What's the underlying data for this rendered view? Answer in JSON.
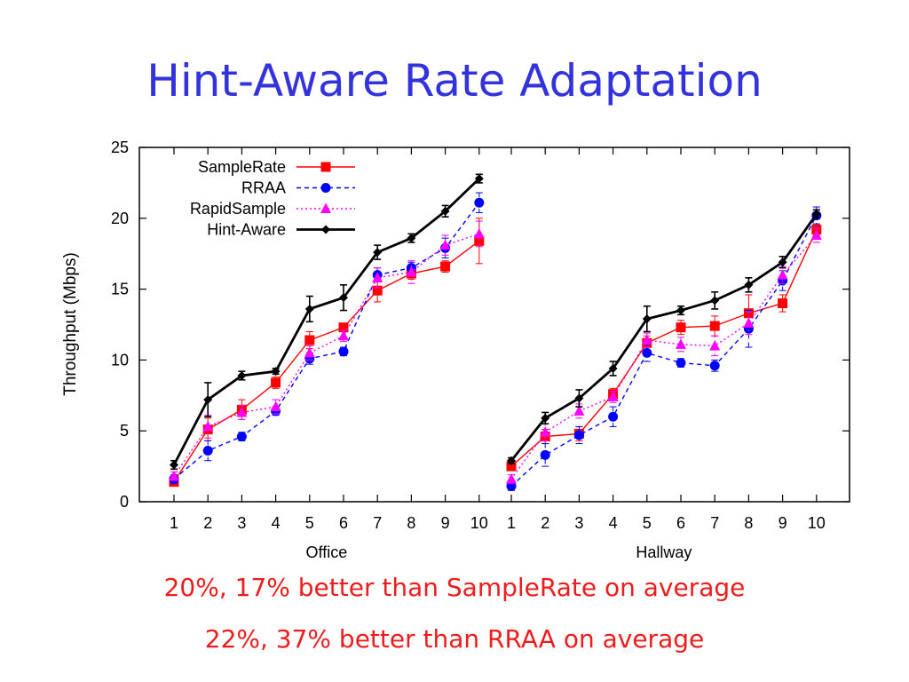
{
  "slide": {
    "title": "Hint-Aware Rate Adaptation",
    "captions": [
      "20%, 17% better than SampleRate on average",
      "22%, 37% better than RRAA on average"
    ]
  },
  "chart_data": {
    "type": "line",
    "title": "",
    "xlabel": "",
    "ylabel": "Throughput (Mbps)",
    "ylim": [
      0,
      25
    ],
    "yticks": [
      0,
      5,
      10,
      15,
      20,
      25
    ],
    "legend_position": "top-left",
    "grid": false,
    "groups": [
      {
        "name": "Office",
        "categories": [
          "1",
          "2",
          "3",
          "4",
          "5",
          "6",
          "7",
          "8",
          "9",
          "10"
        ]
      },
      {
        "name": "Hallway",
        "categories": [
          "1",
          "2",
          "3",
          "4",
          "5",
          "6",
          "7",
          "8",
          "9",
          "10"
        ]
      }
    ],
    "series": [
      {
        "name": "SampleRate",
        "color": "#ff0000",
        "marker": "square",
        "dash": "solid",
        "office": [
          1.4,
          5.1,
          6.5,
          8.4,
          11.4,
          12.3,
          14.9,
          16.1,
          16.6,
          18.4
        ],
        "office_err": [
          0.3,
          0.8,
          0.7,
          0.4,
          0.6,
          0.3,
          0.8,
          0.4,
          0.4,
          1.6
        ],
        "hallway": [
          2.5,
          4.6,
          4.8,
          7.6,
          11.2,
          12.3,
          12.4,
          13.3,
          14.0,
          19.2
        ],
        "hallway_err": [
          0.3,
          0.5,
          0.5,
          0.4,
          0.5,
          0.5,
          0.7,
          1.3,
          0.6,
          0.4
        ]
      },
      {
        "name": "RRAA",
        "color": "#0000ff",
        "marker": "circle",
        "dash": "dashed",
        "office": [
          1.6,
          3.6,
          4.6,
          6.4,
          10.1,
          10.6,
          16.0,
          16.5,
          17.9,
          21.1
        ],
        "office_err": [
          0.3,
          0.7,
          0.3,
          0.3,
          0.4,
          0.3,
          0.5,
          0.4,
          0.7,
          0.7
        ],
        "hallway": [
          1.1,
          3.3,
          4.7,
          6.0,
          10.5,
          9.8,
          9.6,
          12.2,
          15.6,
          20.2
        ],
        "hallway_err": [
          0.3,
          0.8,
          0.6,
          0.7,
          0.6,
          0.3,
          0.4,
          1.3,
          0.7,
          0.6
        ]
      },
      {
        "name": "RapidSample",
        "color": "#ff00ff",
        "marker": "triangle",
        "dash": "dotted",
        "office": [
          1.8,
          5.3,
          6.3,
          6.7,
          10.5,
          11.7,
          15.8,
          16.2,
          18.1,
          18.9
        ],
        "office_err": [
          0.3,
          0.8,
          0.5,
          0.5,
          0.5,
          0.4,
          0.7,
          0.8,
          0.7,
          0.9
        ],
        "hallway": [
          1.6,
          4.9,
          6.4,
          7.4,
          11.4,
          11.1,
          11.0,
          12.6,
          16.0,
          18.8
        ],
        "hallway_err": [
          0.3,
          0.6,
          0.5,
          0.4,
          0.5,
          0.5,
          0.7,
          0.8,
          0.6,
          0.5
        ]
      },
      {
        "name": "Hint-Aware",
        "color": "#000000",
        "marker": "diamond",
        "dash": "solid",
        "office": [
          2.6,
          7.2,
          8.9,
          9.2,
          13.6,
          14.4,
          17.6,
          18.6,
          20.5,
          22.8
        ],
        "office_err": [
          0.3,
          1.2,
          0.3,
          0.2,
          0.9,
          0.9,
          0.5,
          0.3,
          0.4,
          0.3
        ],
        "hallway": [
          2.9,
          5.9,
          7.3,
          9.4,
          12.9,
          13.5,
          14.2,
          15.3,
          16.9,
          20.3
        ],
        "hallway_err": [
          0.2,
          0.4,
          0.6,
          0.5,
          0.9,
          0.3,
          0.6,
          0.5,
          0.4,
          0.3
        ]
      }
    ]
  }
}
